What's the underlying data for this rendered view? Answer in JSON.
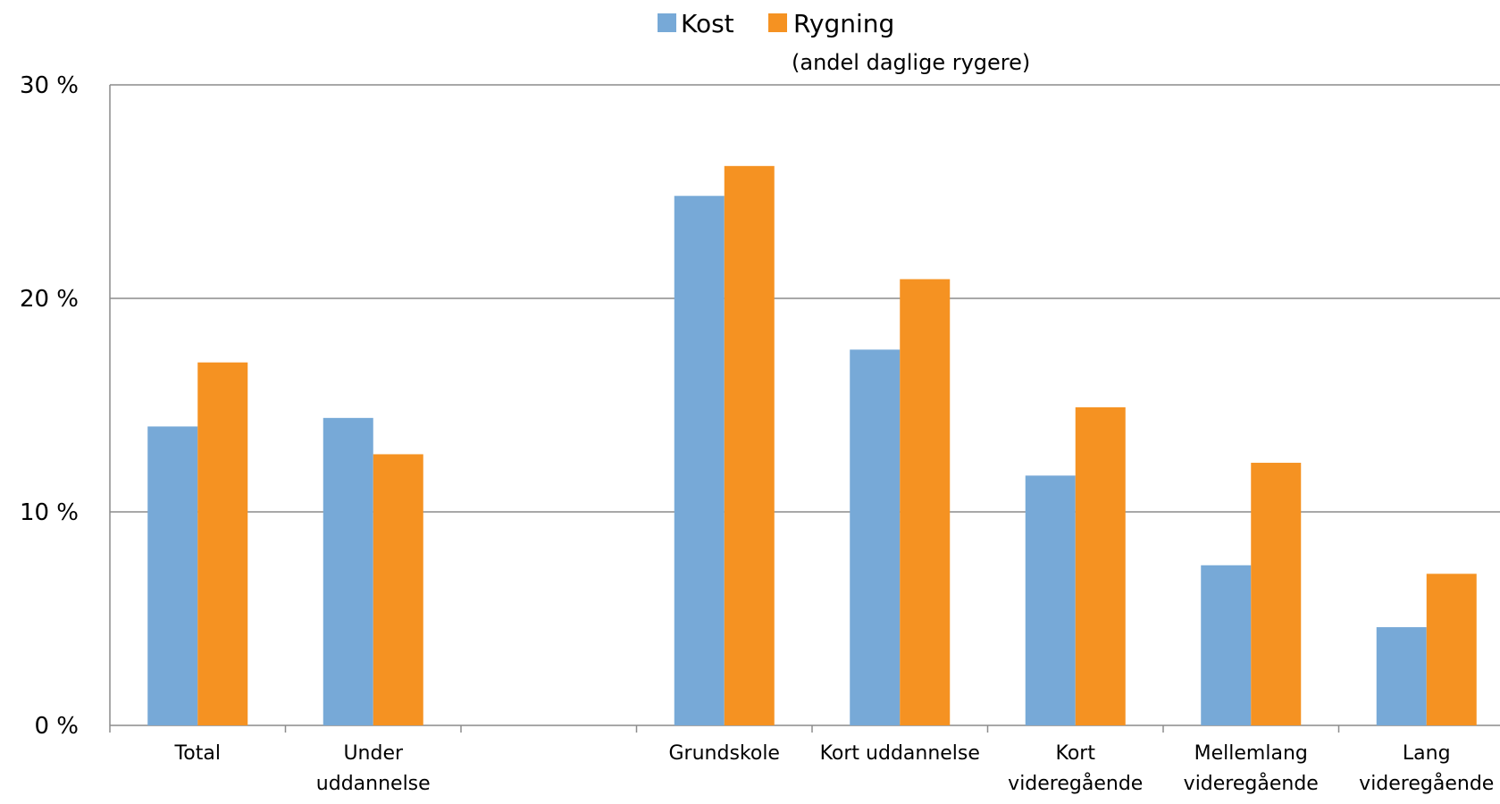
{
  "chart_data": {
    "type": "bar",
    "categories": [
      [
        "Total"
      ],
      [
        "Under",
        "uddannelse"
      ],
      [],
      [
        "Grundskole"
      ],
      [
        "Kort uddannelse"
      ],
      [
        "Kort",
        "videregående"
      ],
      [
        "Mellemlang",
        "videregående"
      ],
      [
        "Lang",
        "videregående"
      ]
    ],
    "series": [
      {
        "name": "Kost",
        "color": "#77A9D7",
        "values": [
          14.0,
          14.4,
          null,
          24.8,
          17.6,
          11.7,
          7.5,
          4.6
        ]
      },
      {
        "name": "Rygning",
        "color": "#F59222",
        "values": [
          17.0,
          12.7,
          null,
          26.2,
          20.9,
          14.9,
          12.3,
          7.1
        ]
      }
    ],
    "legend_note": "(andel daglige rygere)",
    "ylim": [
      0,
      30
    ],
    "yticks": [
      0,
      10,
      20,
      30
    ],
    "ytick_labels": [
      "0 %",
      "10 %",
      "20 %",
      "30 %"
    ],
    "grid": true,
    "legend_position": "top-center"
  }
}
